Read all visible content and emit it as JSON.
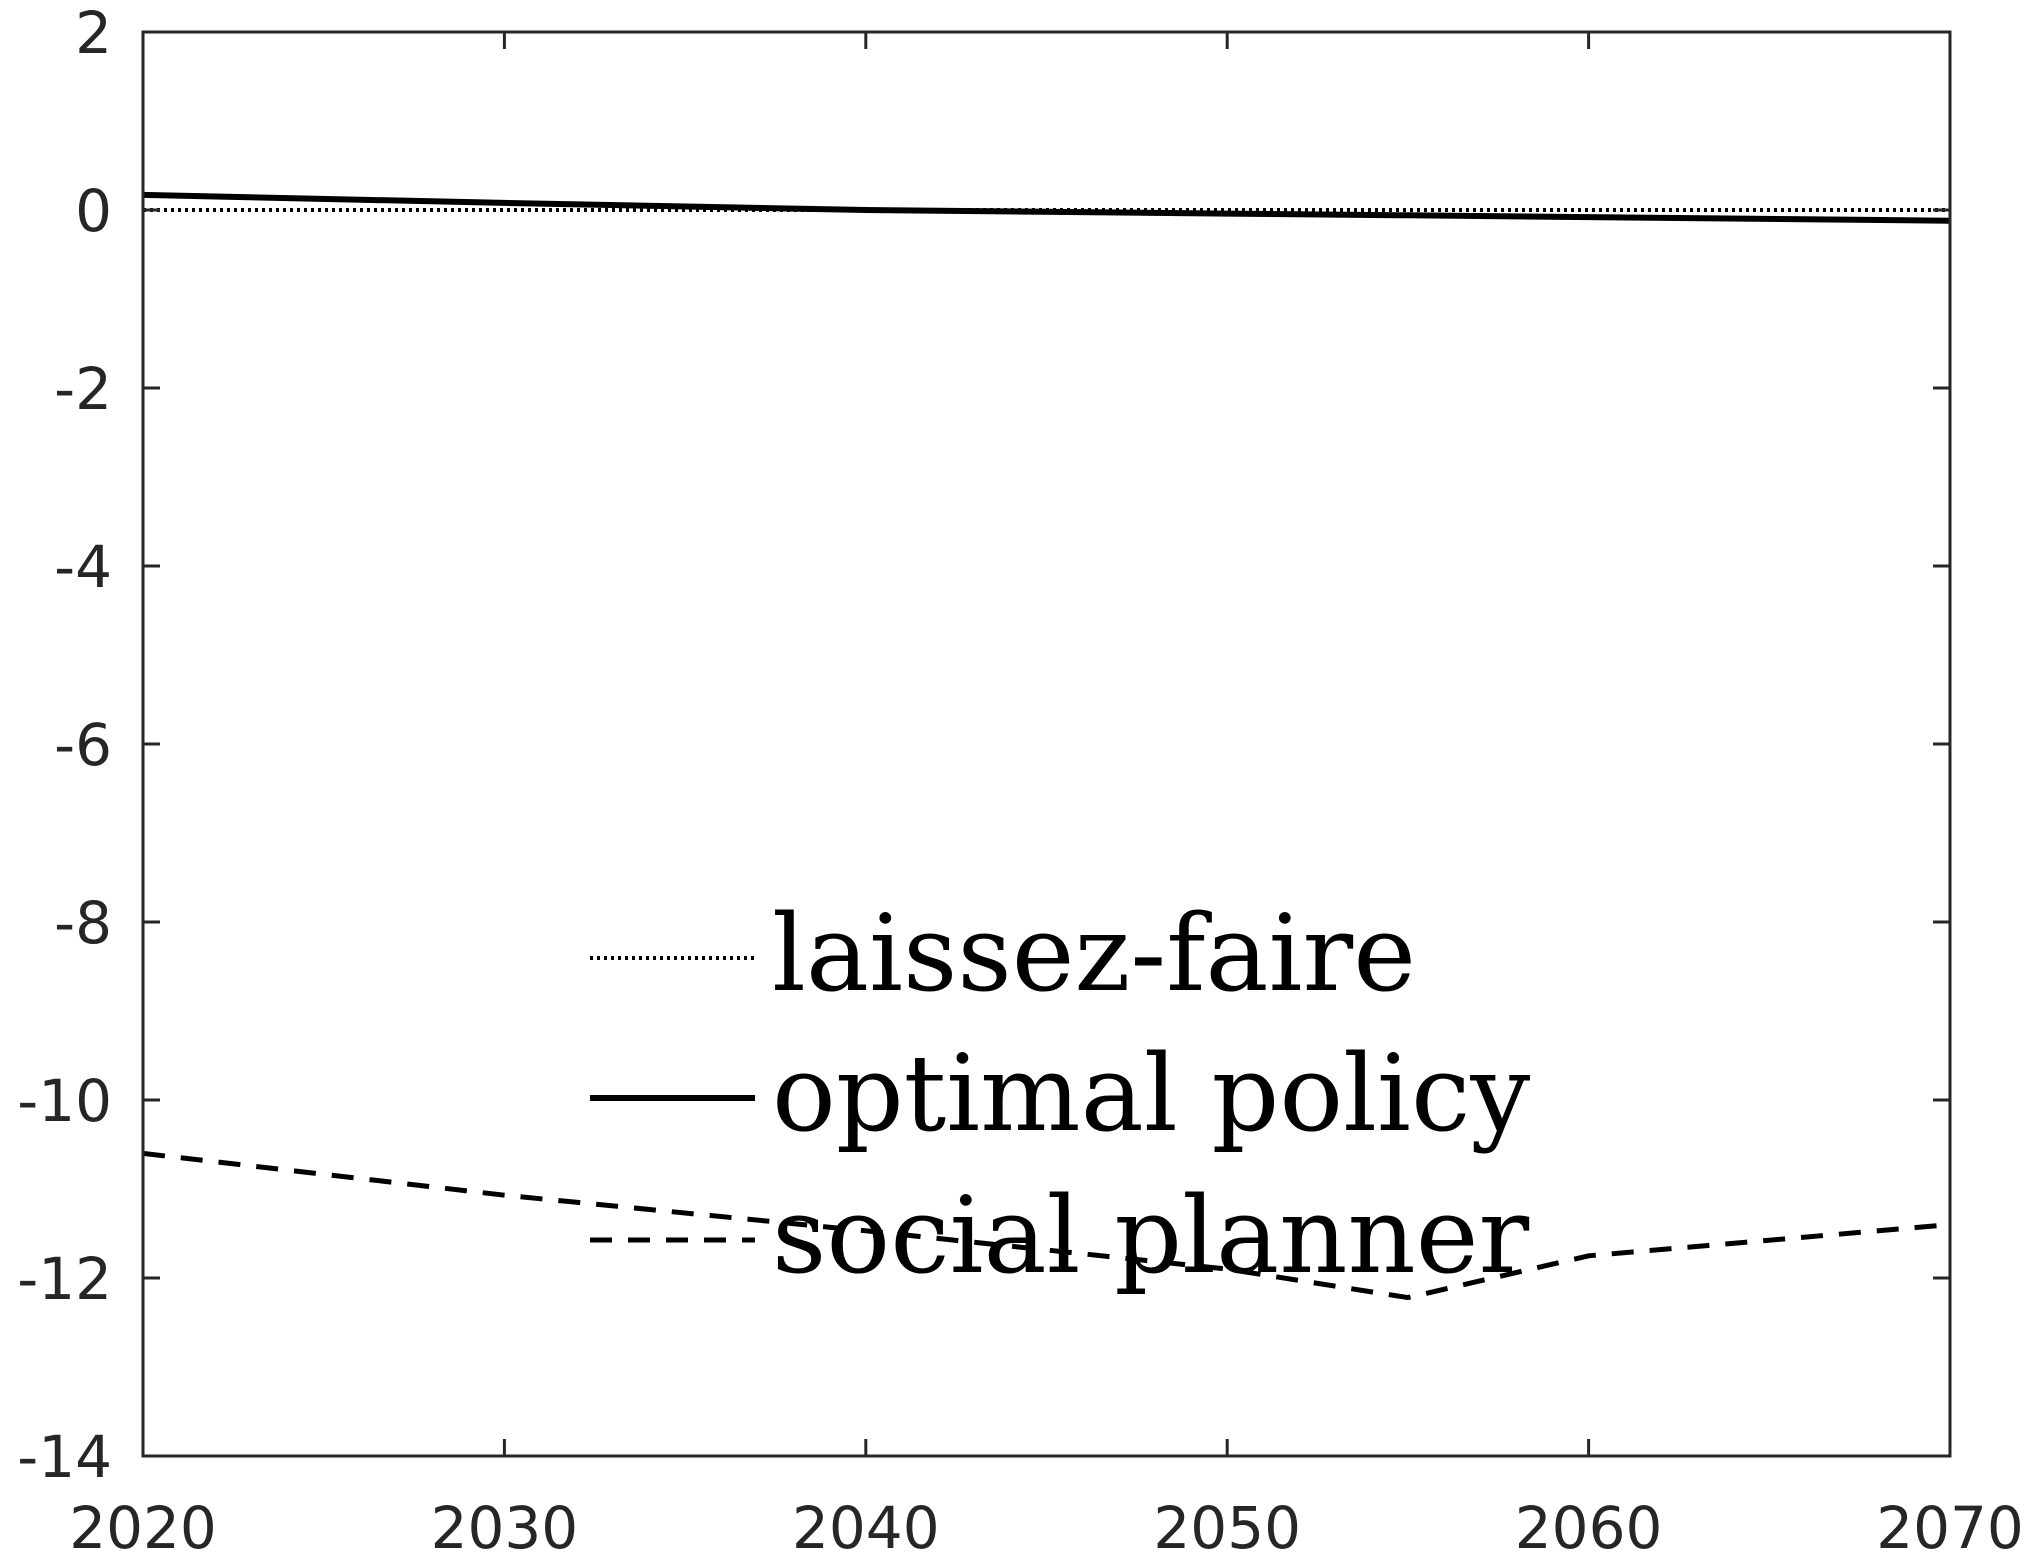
{
  "chart_data": {
    "type": "line",
    "xlim": [
      2020,
      2070
    ],
    "ylim": [
      -14,
      2
    ],
    "xticks": [
      2020,
      2030,
      2040,
      2050,
      2060,
      2070
    ],
    "yticks": [
      2,
      0,
      -2,
      -4,
      -6,
      -8,
      -10,
      -12,
      -14
    ],
    "xtick_labels": [
      "2020",
      "2030",
      "2040",
      "2050",
      "2060",
      "2070"
    ],
    "ytick_labels": [
      "2",
      "0",
      "-2",
      "-4",
      "-6",
      "-8",
      "-10",
      "-12",
      "-14"
    ],
    "grid": false,
    "legend_position": "lower-center",
    "series": [
      {
        "name": "laissez-faire",
        "style": "dotted",
        "color": "#000000",
        "x": [
          2020,
          2030,
          2040,
          2050,
          2055,
          2060,
          2070
        ],
        "y": [
          0.0,
          0.0,
          0.0,
          0.0,
          0.0,
          0.0,
          0.0
        ]
      },
      {
        "name": "optimal policy",
        "style": "solid",
        "color": "#000000",
        "x": [
          2020,
          2030,
          2040,
          2050,
          2055,
          2060,
          2070
        ],
        "y": [
          0.17,
          0.08,
          0.0,
          -0.04,
          -0.06,
          -0.08,
          -0.12
        ]
      },
      {
        "name": "social planner",
        "style": "dashed",
        "color": "#000000",
        "x": [
          2020,
          2030,
          2040,
          2050,
          2055,
          2060,
          2070
        ],
        "y": [
          -10.6,
          -11.07,
          -11.47,
          -11.9,
          -12.22,
          -11.75,
          -11.4
        ]
      }
    ]
  }
}
